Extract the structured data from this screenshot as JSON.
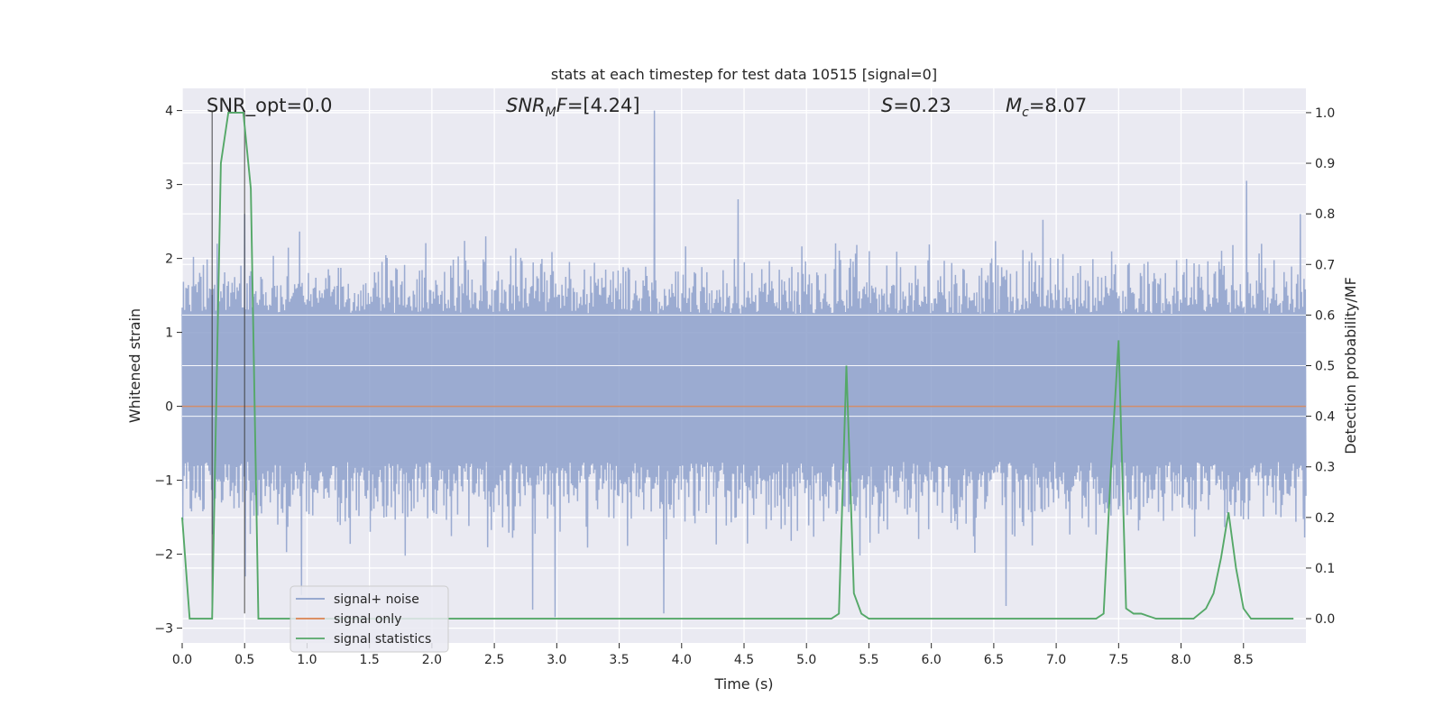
{
  "chart_data": {
    "type": "line",
    "title": "stats at each timestep for test data 10515 [signal=0]",
    "xlabel": "Time (s)",
    "ylabel": "Whitened strain",
    "y2label": "Detection probability/MF",
    "xlim": [
      0.0,
      9.0
    ],
    "ylim": [
      -3.2,
      4.3
    ],
    "y2lim": [
      -0.048,
      1.048
    ],
    "x_ticks": [
      0.0,
      0.5,
      1.0,
      1.5,
      2.0,
      2.5,
      3.0,
      3.5,
      4.0,
      4.5,
      5.0,
      5.5,
      6.0,
      6.5,
      7.0,
      7.5,
      8.0,
      8.5
    ],
    "x_tick_labels": [
      "0.0",
      "0.5",
      "1.0",
      "1.5",
      "2.0",
      "2.5",
      "3.0",
      "3.5",
      "4.0",
      "4.5",
      "5.0",
      "5.5",
      "6.0",
      "6.5",
      "7.0",
      "7.5",
      "8.0",
      "8.5"
    ],
    "y_ticks": [
      -3,
      -2,
      -1,
      0,
      1,
      2,
      3,
      4
    ],
    "y_tick_labels": [
      "−3",
      "−2",
      "−1",
      "0",
      "1",
      "2",
      "3",
      "4"
    ],
    "y2_ticks": [
      0.0,
      0.1,
      0.2,
      0.3,
      0.4,
      0.5,
      0.6,
      0.7,
      0.8,
      0.9,
      1.0
    ],
    "y2_tick_labels": [
      "0.0",
      "0.1",
      "0.2",
      "0.3",
      "0.4",
      "0.5",
      "0.6",
      "0.7",
      "0.8",
      "0.9",
      "1.0"
    ],
    "grid": true,
    "legend": {
      "placement": "lower-left",
      "entries": [
        {
          "label": "signal+ noise",
          "color": "#8da0cb"
        },
        {
          "label": "signal only",
          "color": "#dd8452"
        },
        {
          "label": "signal statistics",
          "color": "#55a868"
        }
      ]
    },
    "annotations": [
      {
        "text_parts": [
          {
            "t": "SNR_opt=0.0",
            "style": "normal"
          }
        ]
      },
      {
        "text_parts": [
          {
            "t": "SNR",
            "style": "italic"
          },
          {
            "t": "M",
            "style": "italic-sub"
          },
          {
            "t": "F",
            "style": "italic"
          },
          {
            "t": "=[4.24]",
            "style": "normal"
          }
        ]
      },
      {
        "text_parts": [
          {
            "t": "S",
            "style": "italic"
          },
          {
            "t": "=0.23",
            "style": "normal"
          }
        ]
      },
      {
        "text_parts": [
          {
            "t": "M",
            "style": "italic"
          },
          {
            "t": "c",
            "style": "italic-sub"
          },
          {
            "t": "=8.07",
            "style": "normal"
          }
        ]
      }
    ],
    "vertical_markers": [
      {
        "x": 0.24,
        "ymin": -2.8,
        "ymax": 4.0
      },
      {
        "x": 0.5,
        "ymin": -2.8,
        "ymax": 4.0
      }
    ],
    "series": [
      {
        "name": "signal+ noise",
        "axis": "left",
        "color": "#8da0cb",
        "kind": "noise-band",
        "band_low": -0.75,
        "band_high": 1.25,
        "sample_count": 1800,
        "notable_peaks": [
          {
            "x": 0.28,
            "y": 2.2
          },
          {
            "x": 0.5,
            "y": 2.6
          },
          {
            "x": 0.5,
            "y": -2.3
          },
          {
            "x": 3.78,
            "y": 4.0
          },
          {
            "x": 3.85,
            "y": -2.8
          },
          {
            "x": 4.45,
            "y": 2.8
          },
          {
            "x": 2.8,
            "y": -2.75
          },
          {
            "x": 2.98,
            "y": -2.85
          },
          {
            "x": 6.6,
            "y": -2.7
          },
          {
            "x": 8.52,
            "y": 3.05
          },
          {
            "x": 8.95,
            "y": 2.6
          },
          {
            "x": 0.95,
            "y": -2.55
          }
        ]
      },
      {
        "name": "signal only",
        "axis": "left",
        "color": "#dd8452",
        "x": [
          0.0,
          9.0
        ],
        "y": [
          0.0,
          0.0
        ]
      },
      {
        "name": "signal statistics",
        "axis": "right",
        "color": "#55a868",
        "x": [
          0.0,
          0.06,
          0.12,
          0.18,
          0.24,
          0.31,
          0.37,
          0.43,
          0.49,
          0.55,
          0.61,
          5.2,
          5.26,
          5.32,
          5.38,
          5.44,
          5.5,
          7.32,
          7.38,
          7.44,
          7.5,
          7.56,
          7.62,
          7.68,
          7.8,
          7.9,
          8.1,
          8.2,
          8.26,
          8.32,
          8.38,
          8.44,
          8.5,
          8.56,
          8.9
        ],
        "y": [
          0.2,
          0.0,
          0.0,
          0.0,
          0.0,
          0.9,
          1.0,
          1.0,
          1.0,
          0.85,
          0.0,
          0.0,
          0.01,
          0.5,
          0.05,
          0.01,
          0.0,
          0.0,
          0.01,
          0.3,
          0.55,
          0.02,
          0.01,
          0.01,
          0.0,
          0.0,
          0.0,
          0.02,
          0.05,
          0.12,
          0.21,
          0.1,
          0.02,
          0.0,
          0.0
        ]
      }
    ]
  }
}
